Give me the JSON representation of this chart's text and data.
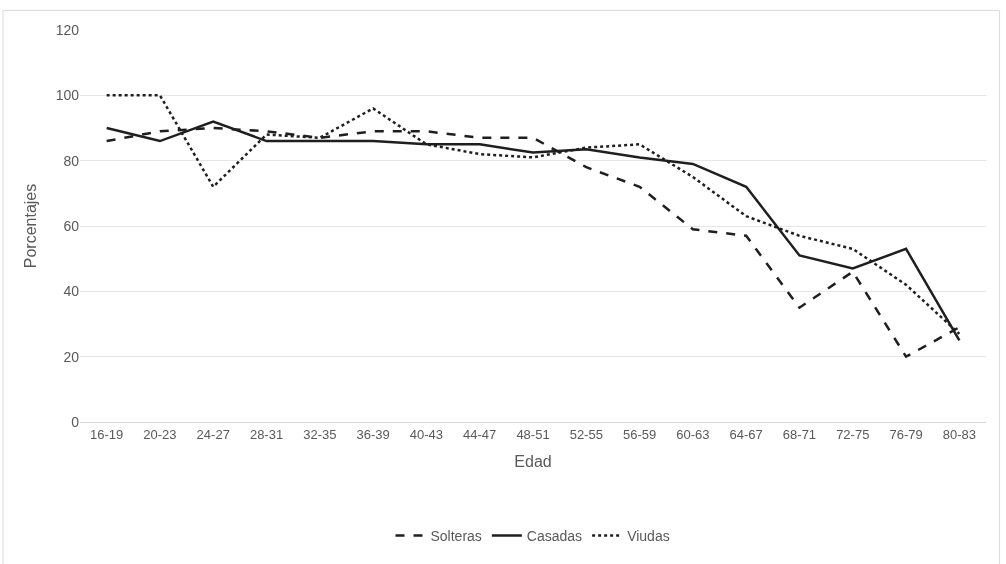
{
  "chart_data": {
    "type": "line",
    "xlabel": "Edad",
    "ylabel": "Porcentajes",
    "categories": [
      "16-19",
      "20-23",
      "24-27",
      "28-31",
      "32-35",
      "36-39",
      "40-43",
      "44-47",
      "48-51",
      "52-55",
      "56-59",
      "60-63",
      "64-67",
      "68-71",
      "72-75",
      "76-79",
      "80-83"
    ],
    "series": [
      {
        "name": "Solteras",
        "color": "#1f1f1f",
        "line_style": "dashed",
        "values": [
          86,
          89,
          90,
          89,
          87,
          89,
          89,
          87,
          87,
          78,
          72,
          59,
          57,
          35,
          46,
          20,
          29
        ]
      },
      {
        "name": "Casadas",
        "color": "#1f1f1f",
        "line_style": "solid",
        "values": [
          90,
          86,
          92,
          86,
          86,
          86,
          85,
          85,
          82.5,
          83.5,
          81,
          79,
          72,
          51,
          47,
          53,
          25
        ]
      },
      {
        "name": "Viudas",
        "color": "#1f1f1f",
        "line_style": "dotted",
        "values": [
          100,
          100,
          72,
          88,
          87,
          96,
          85,
          82,
          81,
          84,
          85,
          75,
          63,
          57,
          53,
          42,
          27
        ]
      }
    ],
    "ylim": [
      0,
      120
    ],
    "yticks": [
      0,
      20,
      40,
      60,
      80,
      100,
      120
    ],
    "grid": "y",
    "legend": "bottom",
    "marker": "none"
  }
}
